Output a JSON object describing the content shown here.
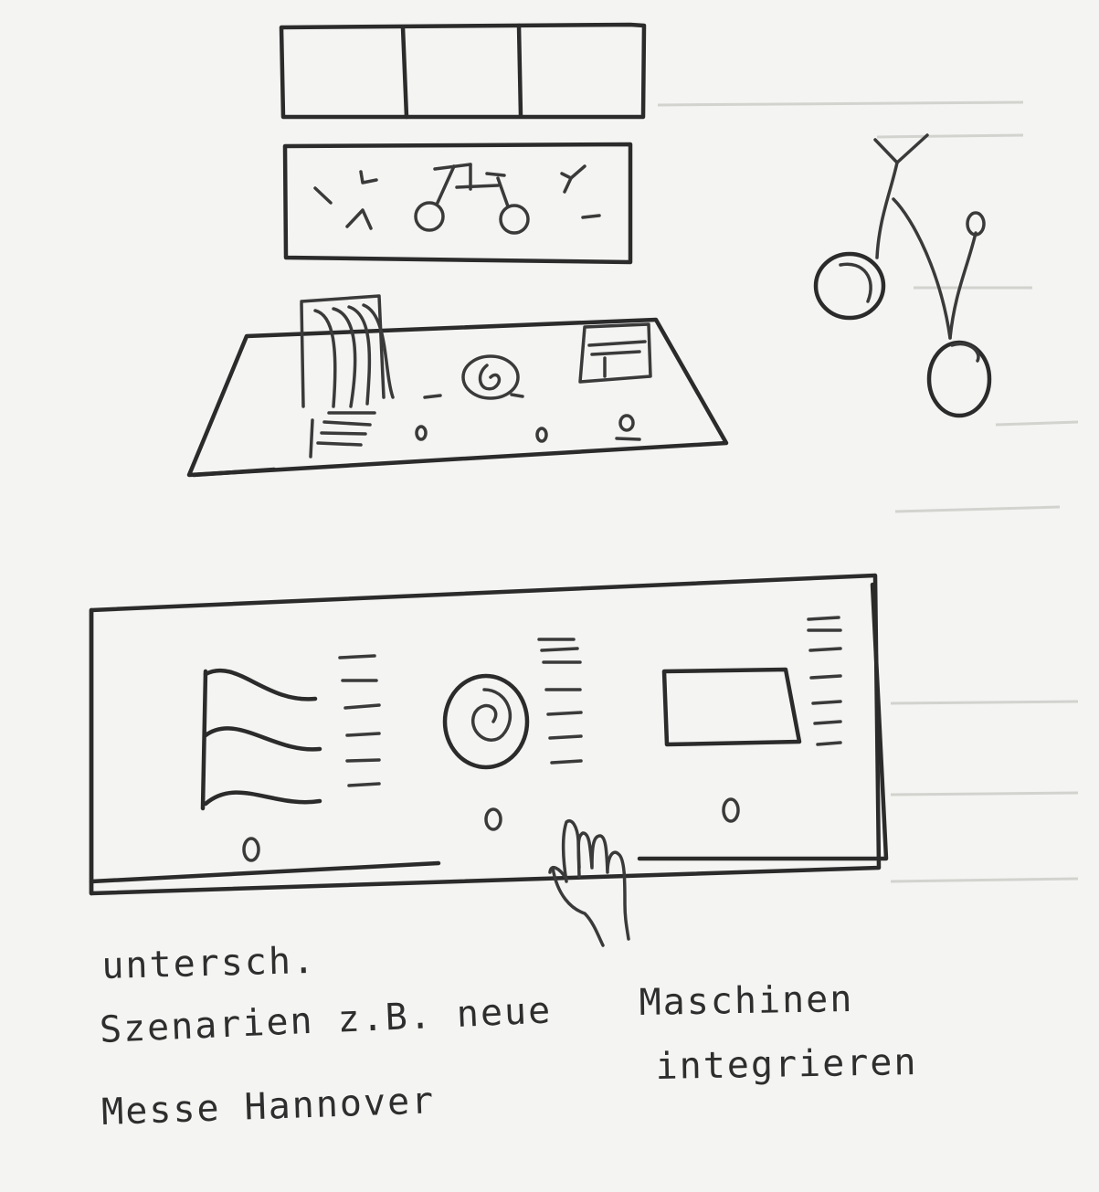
{
  "notes": {
    "line1": "untersch.",
    "line2": "Szenarien z.B. neue",
    "line3": "Maschinen",
    "line4": "integrieren",
    "line5": "Messe Hannover"
  },
  "icons": {
    "wave_panel": "wave-lines-icon",
    "spiral": "spiral-icon",
    "screen": "screen-rectangle-icon",
    "hand": "hand-icon",
    "cherries": "cherries-icon"
  },
  "colors": {
    "ink": "#2b2b2b",
    "paper": "#f4f4f2"
  }
}
